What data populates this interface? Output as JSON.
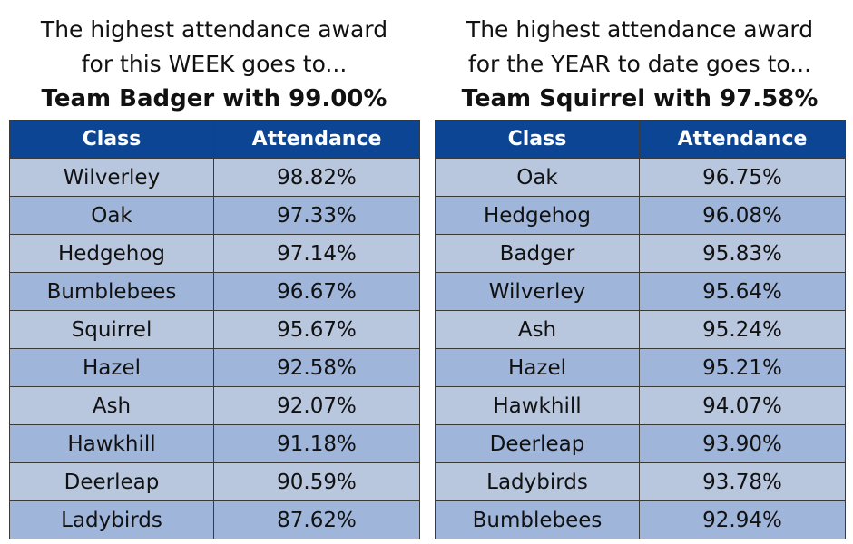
{
  "week": {
    "heading_line1": "The highest attendance award",
    "heading_line2": "for this WEEK goes to...",
    "winner": "Team Badger with 99.00%",
    "columns": [
      "Class",
      "Attendance"
    ],
    "rows": [
      {
        "class": "Wilverley",
        "attendance": "98.82%"
      },
      {
        "class": "Oak",
        "attendance": "97.33%"
      },
      {
        "class": "Hedgehog",
        "attendance": "97.14%"
      },
      {
        "class": "Bumblebees",
        "attendance": "96.67%"
      },
      {
        "class": "Squirrel",
        "attendance": "95.67%"
      },
      {
        "class": "Hazel",
        "attendance": "92.58%"
      },
      {
        "class": "Ash",
        "attendance": "92.07%"
      },
      {
        "class": "Hawkhill",
        "attendance": "91.18%"
      },
      {
        "class": "Deerleap",
        "attendance": "90.59%"
      },
      {
        "class": "Ladybirds",
        "attendance": "87.62%"
      }
    ]
  },
  "year": {
    "heading_line1": "The highest attendance award",
    "heading_line2": "for the YEAR to date goes to...",
    "winner": "Team Squirrel with 97.58%",
    "columns": [
      "Class",
      "Attendance"
    ],
    "rows": [
      {
        "class": "Oak",
        "attendance": "96.75%"
      },
      {
        "class": "Hedgehog",
        "attendance": "96.08%"
      },
      {
        "class": "Badger",
        "attendance": "95.83%"
      },
      {
        "class": "Wilverley",
        "attendance": "95.64%"
      },
      {
        "class": "Ash",
        "attendance": "95.24%"
      },
      {
        "class": "Hazel",
        "attendance": "95.21%"
      },
      {
        "class": "Hawkhill",
        "attendance": "94.07%"
      },
      {
        "class": "Deerleap",
        "attendance": "93.90%"
      },
      {
        "class": "Ladybirds",
        "attendance": "93.78%"
      },
      {
        "class": "Bumblebees",
        "attendance": "92.94%"
      }
    ]
  },
  "colors": {
    "header_bg": "#0d4595",
    "header_text": "#ffffff",
    "row_light": "#b8c7de",
    "row_dark": "#9fb5d9",
    "border": "#3a3a3a"
  }
}
